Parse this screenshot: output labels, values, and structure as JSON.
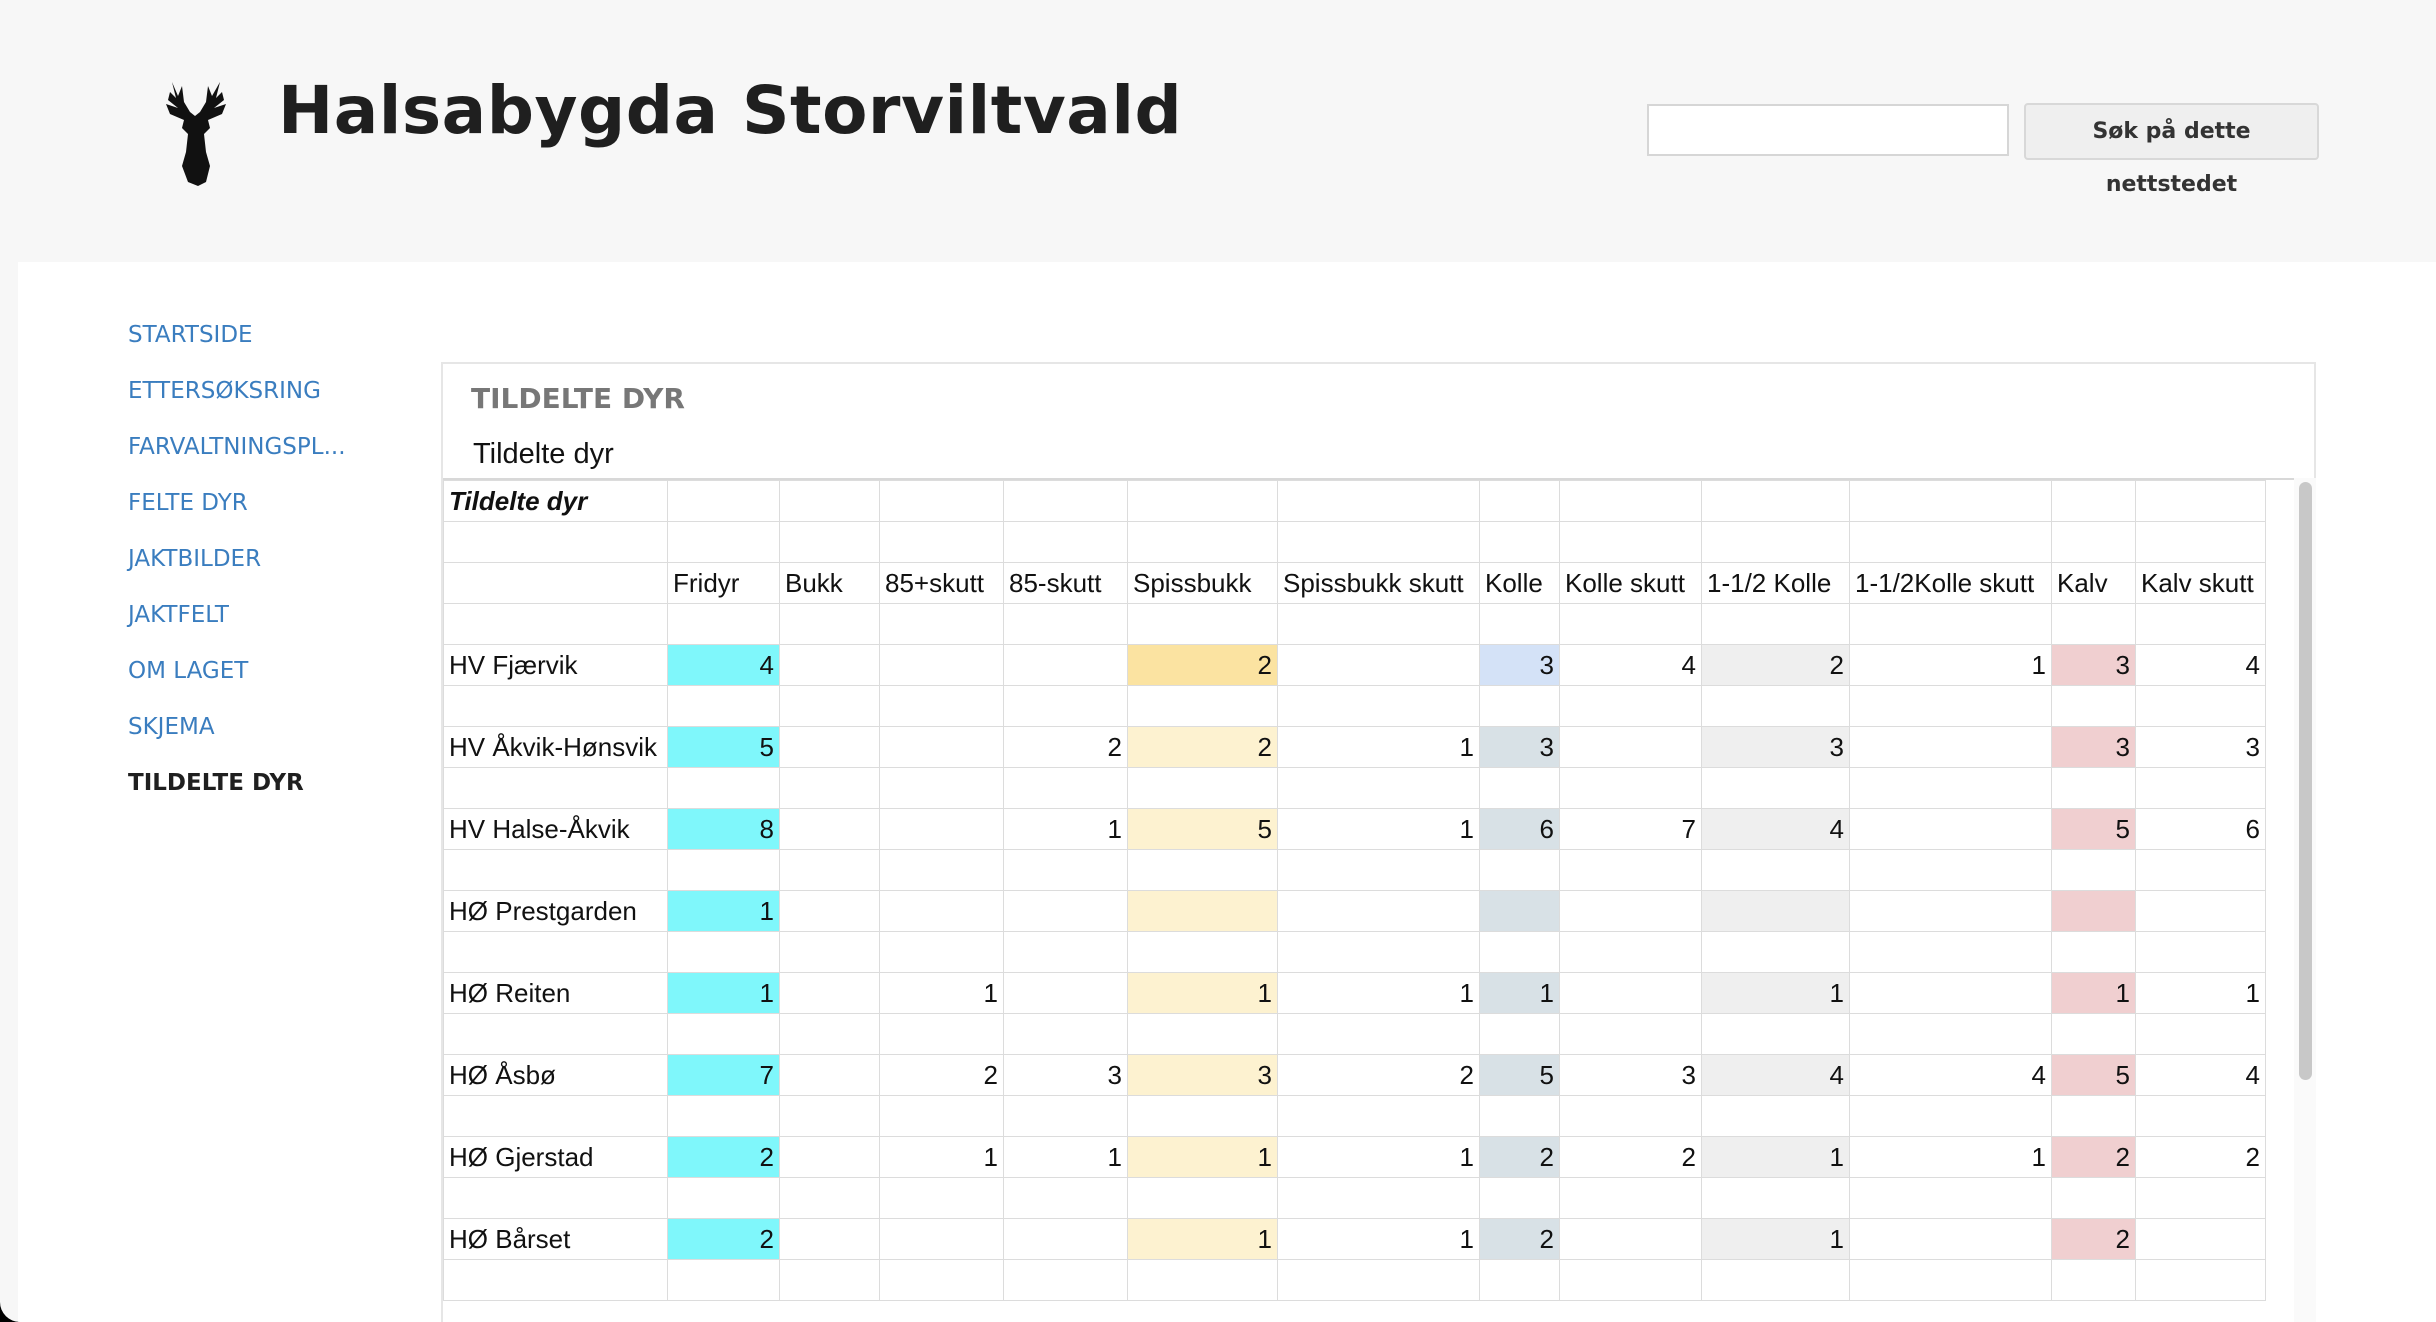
{
  "site": {
    "title": "Halsabygda Storviltvald"
  },
  "search": {
    "placeholder": "",
    "button_label": "Søk på dette nettstedet"
  },
  "nav": [
    {
      "label": "STARTSIDE",
      "active": false
    },
    {
      "label": "ETTERSØKSRING",
      "active": false
    },
    {
      "label": "FARVALTNINGSPL...",
      "active": false
    },
    {
      "label": "FELTE DYR",
      "active": false
    },
    {
      "label": "JAKTBILDER",
      "active": false
    },
    {
      "label": "JAKTFELT",
      "active": false
    },
    {
      "label": "OM LAGET",
      "active": false
    },
    {
      "label": "SKJEMA",
      "active": false
    },
    {
      "label": "TILDELTE DYR",
      "active": true
    }
  ],
  "panel": {
    "title": "TILDELTE DYR",
    "subtitle": "Tildelte dyr"
  },
  "sheet": {
    "title": "Tildelte dyr",
    "columns": [
      "Fridyr",
      "Bukk",
      "85+skutt",
      "85-skutt",
      "Spissbukk",
      "Spissbukk skutt",
      "Kolle",
      "Kolle skutt",
      "1-1/2 Kolle",
      "1-1/2Kolle skutt",
      "Kalv",
      "Kalv skutt"
    ],
    "column_colors": {
      "Fridyr": "#7ff7fb",
      "Spissbukk": "#fdf2d0",
      "Kolle": "#d8e1e6",
      "1-1/2 Kolle": "#efefef",
      "Kalv": "#f0cfd0"
    },
    "highlight_colors": {
      "spissbukk_first": "#fbe3a1",
      "kolle_first": "#d4e2f7"
    },
    "rows": [
      {
        "name": "HV Fjærvik",
        "values": [
          "4",
          "",
          "",
          "",
          "2",
          "",
          "3",
          "4",
          "2",
          "1",
          "3",
          "4"
        ]
      },
      {
        "name": "HV Åkvik-Hønsvik",
        "values": [
          "5",
          "",
          "",
          "2",
          "2",
          "1",
          "3",
          "",
          "3",
          "",
          "3",
          "3"
        ]
      },
      {
        "name": "HV Halse-Åkvik",
        "values": [
          "8",
          "",
          "",
          "1",
          "5",
          "1",
          "6",
          "7",
          "4",
          "",
          "5",
          "6"
        ]
      },
      {
        "name": "HØ Prestgarden",
        "values": [
          "1",
          "",
          "",
          "",
          "",
          "",
          "",
          "",
          "",
          "",
          "",
          ""
        ]
      },
      {
        "name": "HØ Reiten",
        "values": [
          "1",
          "",
          "1",
          "",
          "1",
          "1",
          "1",
          "",
          "1",
          "",
          "1",
          "1"
        ]
      },
      {
        "name": "HØ Åsbø",
        "values": [
          "7",
          "",
          "2",
          "3",
          "3",
          "2",
          "5",
          "3",
          "4",
          "4",
          "5",
          "4"
        ]
      },
      {
        "name": "HØ Gjerstad",
        "values": [
          "2",
          "",
          "1",
          "1",
          "1",
          "1",
          "2",
          "2",
          "1",
          "1",
          "2",
          "2"
        ]
      },
      {
        "name": "HØ Bårset",
        "values": [
          "2",
          "",
          "",
          "",
          "1",
          "1",
          "2",
          "",
          "1",
          "",
          "2",
          ""
        ]
      }
    ]
  }
}
